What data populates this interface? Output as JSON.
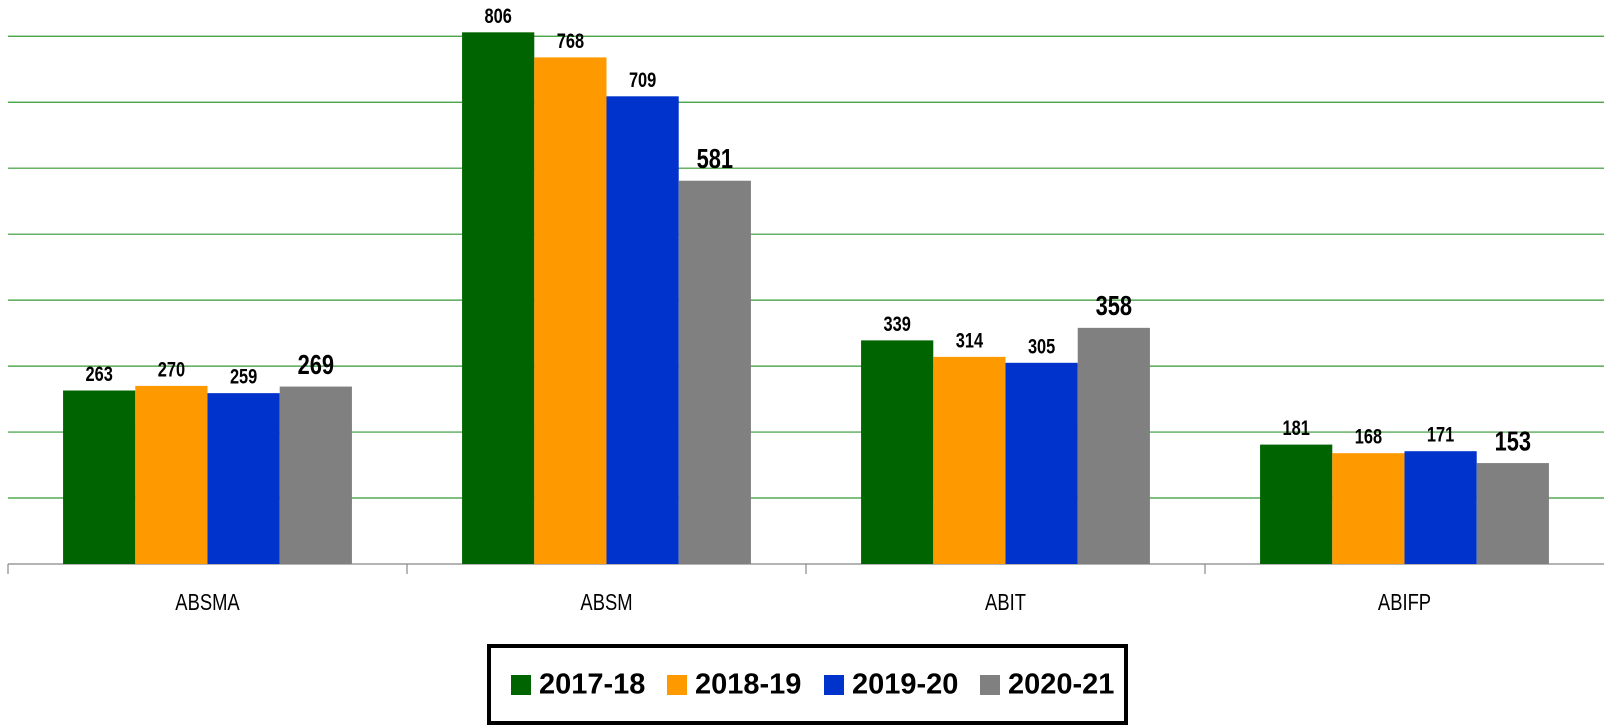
{
  "chart_data": {
    "type": "bar",
    "categories": [
      "ABSMA",
      "ABSM",
      "ABIT",
      "ABIFP"
    ],
    "series": [
      {
        "name": "2017-18",
        "color": "#006400",
        "values": [
          263,
          806,
          339,
          181
        ]
      },
      {
        "name": "2018-19",
        "color": "#ff9900",
        "values": [
          270,
          768,
          314,
          168
        ]
      },
      {
        "name": "2019-20",
        "color": "#0033cc",
        "values": [
          259,
          709,
          305,
          171
        ]
      },
      {
        "name": "2020-21",
        "color": "#808080",
        "values": [
          269,
          581,
          358,
          153
        ]
      }
    ],
    "ylim": [
      0,
      855
    ],
    "yticks": [
      0,
      100,
      200,
      300,
      400,
      500,
      600,
      700,
      800
    ],
    "grid": true,
    "grid_color": "#339933",
    "legend": "bottom"
  }
}
